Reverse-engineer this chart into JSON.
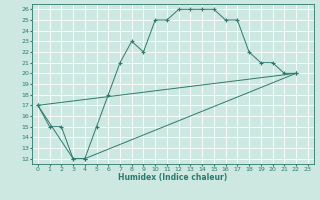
{
  "xlabel": "Humidex (Indice chaleur)",
  "bg_color": "#cce8e0",
  "grid_color": "#ffffff",
  "line_color": "#2d7a6e",
  "xlim": [
    -0.5,
    23.5
  ],
  "ylim": [
    11.5,
    26.5
  ],
  "xticks": [
    0,
    1,
    2,
    3,
    4,
    5,
    6,
    7,
    8,
    9,
    10,
    11,
    12,
    13,
    14,
    15,
    16,
    17,
    18,
    19,
    20,
    21,
    22,
    23
  ],
  "yticks": [
    12,
    13,
    14,
    15,
    16,
    17,
    18,
    19,
    20,
    21,
    22,
    23,
    24,
    25,
    26
  ],
  "line1": [
    [
      0,
      17
    ],
    [
      1,
      15
    ],
    [
      2,
      15
    ],
    [
      3,
      12
    ],
    [
      4,
      12
    ],
    [
      5,
      15
    ],
    [
      6,
      18
    ],
    [
      7,
      21
    ],
    [
      8,
      23
    ],
    [
      9,
      22
    ],
    [
      10,
      25
    ],
    [
      11,
      25
    ],
    [
      12,
      26
    ],
    [
      13,
      26
    ],
    [
      14,
      26
    ],
    [
      15,
      26
    ],
    [
      16,
      25
    ],
    [
      17,
      25
    ],
    [
      18,
      22
    ],
    [
      19,
      21
    ],
    [
      20,
      21
    ],
    [
      21,
      20
    ],
    [
      22,
      20
    ]
  ],
  "line2": [
    [
      0,
      17
    ],
    [
      3,
      12
    ],
    [
      4,
      12
    ],
    [
      22,
      20
    ]
  ],
  "line3": [
    [
      0,
      17
    ],
    [
      22,
      20
    ]
  ]
}
